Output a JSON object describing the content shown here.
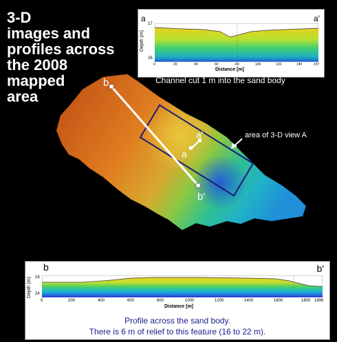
{
  "title": {
    "lines": [
      "3-D",
      "images and",
      "profiles across",
      "the 2008",
      "mapped",
      "area"
    ]
  },
  "top_profile": {
    "left_label": "a",
    "right_label": "a'",
    "ylabel": "Depth (m)",
    "xlabel": "Distance [m]",
    "y_ticks": [
      "17",
      "26"
    ],
    "x_ticks": [
      "0",
      "20",
      "40",
      "60",
      "80",
      "100",
      "120",
      "140",
      "157"
    ],
    "caption": "Channel cut 1 m into the sand body"
  },
  "bottom_profile": {
    "left_label": "b",
    "right_label": "b'",
    "ylabel": "Depth (m)",
    "xlabel": "Distance [m]",
    "y_ticks": [
      "16",
      "24"
    ],
    "x_ticks": [
      "0",
      "200",
      "400",
      "600",
      "800",
      "1000",
      "1200",
      "1400",
      "1600",
      "1800",
      "1896"
    ],
    "caption_line1": "Profile across the sand body.",
    "caption_line2": "There is 6 m of relief to this feature (16 to 22 m)."
  },
  "map": {
    "label_b": "b",
    "label_b_prime": "b'",
    "label_a": "a",
    "label_a_prime": "a'",
    "view_label": "area of 3-D view A"
  }
}
